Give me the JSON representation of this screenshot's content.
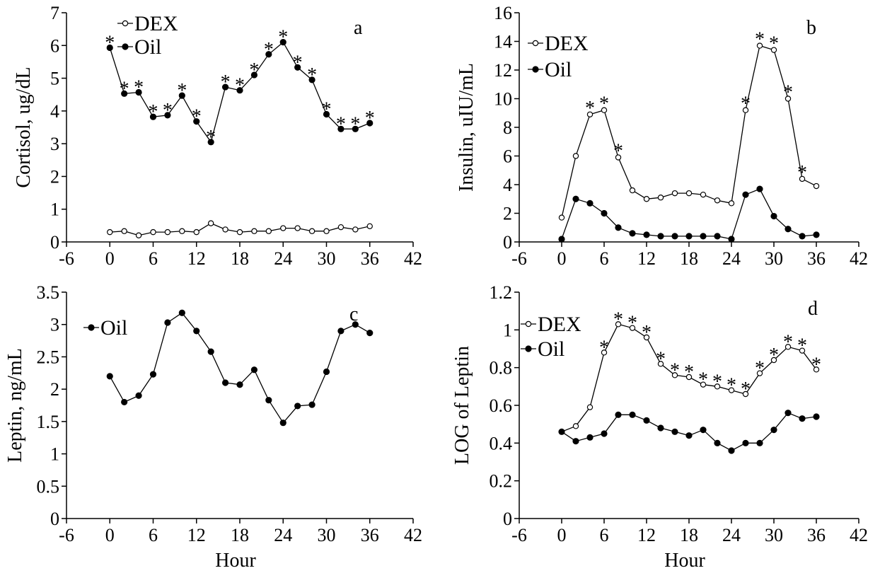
{
  "chart_data": [
    {
      "panel": "a",
      "type": "line",
      "letter": "a",
      "ylabel": "Cortisol, ug/dL",
      "xlabel": "",
      "xlim": [
        -6,
        42
      ],
      "ylim": [
        0,
        7
      ],
      "xticks": [
        -6,
        0,
        6,
        12,
        18,
        24,
        30,
        36,
        42
      ],
      "yticks": [
        0,
        1,
        2,
        3,
        4,
        5,
        6,
        7
      ],
      "legend": {
        "entries": [
          "DEX",
          "Oil"
        ]
      },
      "series": [
        {
          "name": "DEX",
          "marker": "open",
          "x": [
            0,
            2,
            4,
            6,
            8,
            10,
            12,
            14,
            16,
            18,
            20,
            22,
            24,
            26,
            28,
            30,
            32,
            34,
            36
          ],
          "y": [
            0.3,
            0.33,
            0.2,
            0.3,
            0.3,
            0.33,
            0.3,
            0.57,
            0.38,
            0.3,
            0.33,
            0.33,
            0.42,
            0.42,
            0.33,
            0.33,
            0.45,
            0.38,
            0.48
          ]
        },
        {
          "name": "Oil",
          "marker": "filled",
          "x": [
            0,
            2,
            4,
            6,
            8,
            10,
            12,
            14,
            16,
            18,
            20,
            22,
            24,
            26,
            28,
            30,
            32,
            34,
            36
          ],
          "y": [
            5.93,
            4.53,
            4.57,
            3.82,
            3.87,
            4.47,
            3.68,
            3.05,
            4.73,
            4.63,
            5.1,
            5.73,
            6.1,
            5.33,
            4.95,
            3.9,
            3.45,
            3.45,
            3.63
          ]
        }
      ],
      "annotations": {
        "text": "*",
        "x": [
          0,
          2,
          4,
          6,
          8,
          10,
          12,
          14,
          16,
          18,
          20,
          22,
          24,
          26,
          28,
          30,
          32,
          34,
          36
        ]
      }
    },
    {
      "panel": "b",
      "type": "line",
      "letter": "b",
      "ylabel": "Insulin, uIU/mL",
      "xlabel": "",
      "xlim": [
        -6,
        42
      ],
      "ylim": [
        0,
        16
      ],
      "xticks": [
        -6,
        0,
        6,
        12,
        18,
        24,
        30,
        36,
        42
      ],
      "yticks": [
        0,
        2,
        4,
        6,
        8,
        10,
        12,
        14,
        16
      ],
      "legend": {
        "entries": [
          "DEX",
          "Oil"
        ]
      },
      "series": [
        {
          "name": "DEX",
          "marker": "open",
          "x": [
            0,
            2,
            4,
            6,
            8,
            10,
            12,
            14,
            16,
            18,
            20,
            22,
            24,
            26,
            28,
            30,
            32,
            34,
            36
          ],
          "y": [
            1.7,
            6.0,
            8.9,
            9.2,
            5.9,
            3.6,
            3.0,
            3.1,
            3.4,
            3.4,
            3.3,
            2.9,
            2.7,
            9.2,
            13.7,
            13.4,
            10.0,
            4.4,
            3.9
          ]
        },
        {
          "name": "Oil",
          "marker": "filled",
          "x": [
            0,
            2,
            4,
            6,
            8,
            10,
            12,
            14,
            16,
            18,
            20,
            22,
            24,
            26,
            28,
            30,
            32,
            34,
            36
          ],
          "y": [
            0.2,
            3.0,
            2.7,
            2.0,
            1.0,
            0.6,
            0.5,
            0.4,
            0.4,
            0.4,
            0.4,
            0.4,
            0.2,
            3.3,
            3.7,
            1.8,
            0.9,
            0.4,
            0.5
          ]
        }
      ],
      "annotations": {
        "text": "*",
        "x": [
          4,
          6,
          8,
          26,
          28,
          30,
          32,
          34
        ]
      }
    },
    {
      "panel": "c",
      "type": "line",
      "letter": "c",
      "ylabel": "Leptin, ng/mL",
      "xlabel": "Hour",
      "xlim": [
        -6,
        42
      ],
      "ylim": [
        0,
        3.5
      ],
      "xticks": [
        -6,
        0,
        6,
        12,
        18,
        24,
        30,
        36,
        42
      ],
      "yticks": [
        0,
        0.5,
        1,
        1.5,
        2,
        2.5,
        3,
        3.5
      ],
      "legend": {
        "entries": [
          "Oil"
        ]
      },
      "series": [
        {
          "name": "Oil",
          "marker": "filled",
          "x": [
            0,
            2,
            4,
            6,
            8,
            10,
            12,
            14,
            16,
            18,
            20,
            22,
            24,
            26,
            28,
            30,
            32,
            34,
            36
          ],
          "y": [
            2.2,
            1.8,
            1.9,
            2.23,
            3.03,
            3.18,
            2.9,
            2.58,
            2.1,
            2.07,
            2.3,
            1.83,
            1.48,
            1.74,
            1.76,
            2.27,
            2.9,
            3.0,
            2.87
          ]
        }
      ],
      "annotations": {
        "text": "*",
        "x": []
      }
    },
    {
      "panel": "d",
      "type": "line",
      "letter": "d",
      "ylabel": "LOG of Leptin",
      "xlabel": "Hour",
      "xlim": [
        -6,
        42
      ],
      "ylim": [
        0,
        1.2
      ],
      "xticks": [
        -6,
        0,
        6,
        12,
        18,
        24,
        30,
        36,
        42
      ],
      "yticks": [
        0,
        0.2,
        0.4,
        0.6,
        0.8,
        1,
        1.2
      ],
      "legend": {
        "entries": [
          "DEX",
          "Oil"
        ]
      },
      "series": [
        {
          "name": "DEX",
          "marker": "open",
          "x": [
            0,
            2,
            4,
            6,
            8,
            10,
            12,
            14,
            16,
            18,
            20,
            22,
            24,
            26,
            28,
            30,
            32,
            34,
            36
          ],
          "y": [
            0.46,
            0.49,
            0.59,
            0.88,
            1.03,
            1.01,
            0.96,
            0.82,
            0.76,
            0.75,
            0.71,
            0.7,
            0.68,
            0.66,
            0.77,
            0.84,
            0.91,
            0.89,
            0.79
          ]
        },
        {
          "name": "Oil",
          "marker": "filled",
          "x": [
            0,
            2,
            4,
            6,
            8,
            10,
            12,
            14,
            16,
            18,
            20,
            22,
            24,
            26,
            28,
            30,
            32,
            34,
            36
          ],
          "y": [
            0.46,
            0.41,
            0.43,
            0.45,
            0.55,
            0.55,
            0.52,
            0.48,
            0.46,
            0.44,
            0.47,
            0.4,
            0.36,
            0.4,
            0.4,
            0.47,
            0.56,
            0.53,
            0.54
          ]
        }
      ],
      "annotations": {
        "text": "*",
        "x": [
          6,
          8,
          10,
          12,
          14,
          16,
          18,
          20,
          22,
          24,
          26,
          28,
          30,
          32,
          34,
          36
        ]
      }
    }
  ]
}
